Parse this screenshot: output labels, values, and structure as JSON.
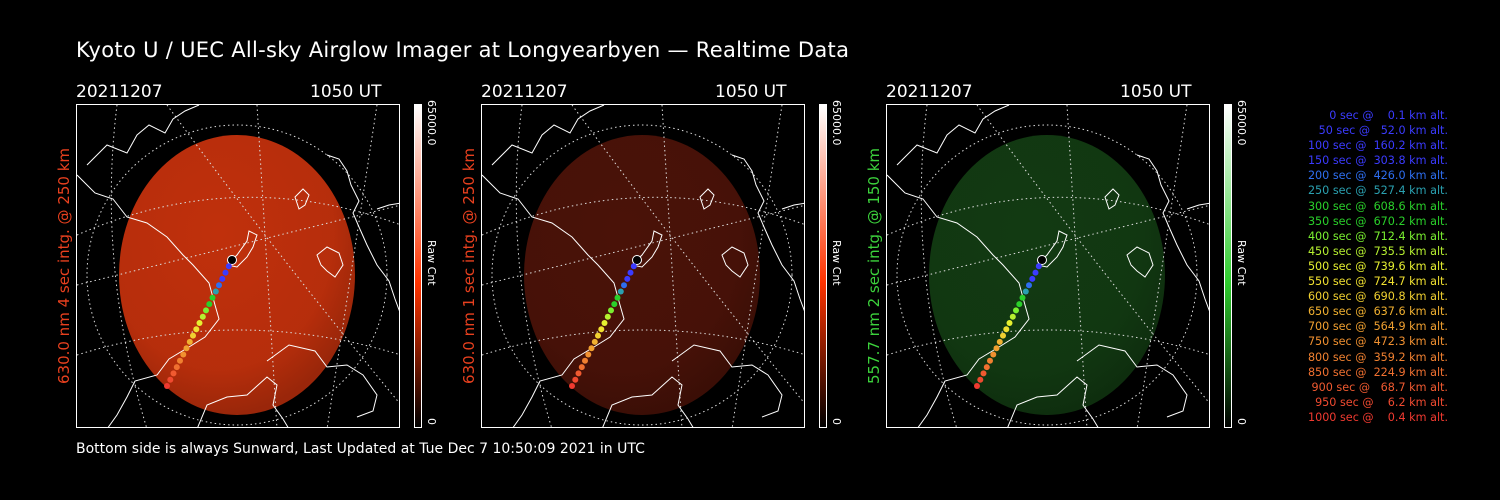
{
  "title": "Kyoto U / UEC All-sky Airglow Imager at Longyearbyen — Realtime Data",
  "footer": "Bottom side is always Sunward, Last Updated at Tue Dec  7 10:50:09 2021 in UTC",
  "panels": [
    {
      "date": "20211207",
      "time": "1050 UT",
      "label": "630.0 nm 4 sec intg. @ 250 km",
      "label_color": "#e8401e",
      "image_color": "#c0300c",
      "intensity": 1.0,
      "cbar_max": "65000.0",
      "cbar_unit": "Raw Cnt",
      "cbar_min": "0",
      "cbar_color": "#ff3300"
    },
    {
      "date": "20211207",
      "time": "1050 UT",
      "label": "630.0 nm 1 sec intg. @ 250 km",
      "label_color": "#e8401e",
      "image_color": "#4a1208",
      "intensity": 0.45,
      "cbar_max": "65000.0",
      "cbar_unit": "Raw Cnt",
      "cbar_min": "0",
      "cbar_color": "#ff3300"
    },
    {
      "date": "20211207",
      "time": "1050 UT",
      "label": "557.7 nm 2 sec intg. @ 150 km",
      "label_color": "#3cd23c",
      "image_color": "#123a12",
      "intensity": 0.45,
      "cbar_max": "65000.0",
      "cbar_unit": "Raw Cnt",
      "cbar_min": "0",
      "cbar_color": "#2ecc2e"
    }
  ],
  "legend": [
    {
      "text": "0 sec @    0.1 km alt.",
      "color": "#3b3bff"
    },
    {
      "text": "50 sec @   52.0 km alt.",
      "color": "#3b3bff"
    },
    {
      "text": "100 sec @  160.2 km alt.",
      "color": "#3b3bff"
    },
    {
      "text": "150 sec @  303.8 km alt.",
      "color": "#3b3bff"
    },
    {
      "text": "200 sec @  426.0 km alt.",
      "color": "#2e6ef0"
    },
    {
      "text": "250 sec @  527.4 km alt.",
      "color": "#2aa0b0"
    },
    {
      "text": "300 sec @  608.6 km alt.",
      "color": "#2ad02a"
    },
    {
      "text": "350 sec @  670.2 km alt.",
      "color": "#2ad02a"
    },
    {
      "text": "400 sec @  712.4 km alt.",
      "color": "#7af030"
    },
    {
      "text": "450 sec @  735.5 km alt.",
      "color": "#b6f030"
    },
    {
      "text": "500 sec @  739.6 km alt.",
      "color": "#e6f030"
    },
    {
      "text": "550 sec @  724.7 km alt.",
      "color": "#f0e030"
    },
    {
      "text": "600 sec @  690.8 km alt.",
      "color": "#f0d030"
    },
    {
      "text": "650 sec @  637.6 km alt.",
      "color": "#f0b030"
    },
    {
      "text": "700 sec @  564.9 km alt.",
      "color": "#f0a030"
    },
    {
      "text": "750 sec @  472.3 km alt.",
      "color": "#f09030"
    },
    {
      "text": "800 sec @  359.2 km alt.",
      "color": "#f08030"
    },
    {
      "text": "850 sec @  224.9 km alt.",
      "color": "#f07030"
    },
    {
      "text": "900 sec @   68.7 km alt.",
      "color": "#f05a30"
    },
    {
      "text": "950 sec @    6.2 km alt.",
      "color": "#f04a30"
    },
    {
      "text": "1000 sec @    0.4 km alt.",
      "color": "#f03a30"
    }
  ]
}
